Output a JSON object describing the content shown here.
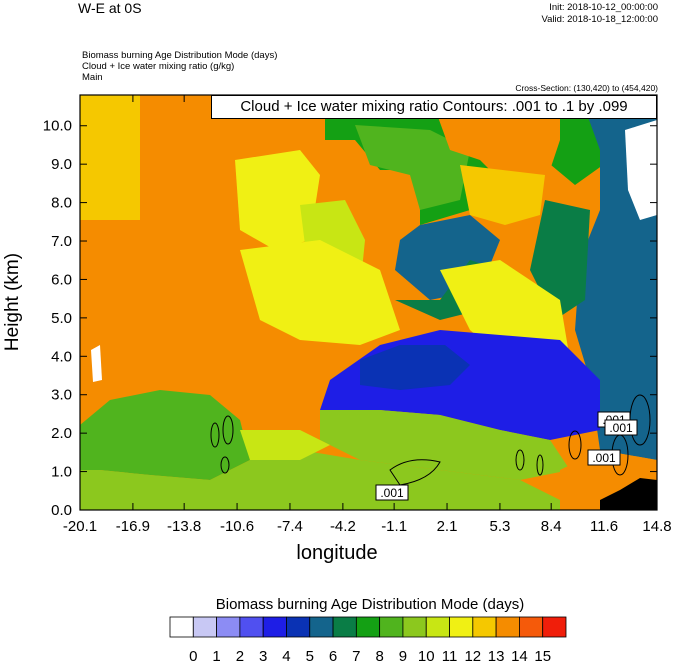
{
  "header": {
    "title": "W-E at 0S",
    "init": "Init: 2018-10-12_00:00:00",
    "valid": "Valid: 2018-10-18_12:00:00",
    "field_line_1": "Biomass burning Age Distribution Mode    (days)",
    "field_line_2": "Cloud + Ice water mixing ratio    (g/kg)",
    "field_line_3": "Main",
    "cross_section": "Cross-Section: (130,420) to (454,420)"
  },
  "chart_data": {
    "type": "heatmap",
    "title": "W-E at 0S",
    "xlabel": "longitude",
    "ylabel": "Height (km)",
    "xlim": [
      -20.1,
      14.8
    ],
    "ylim": [
      0.0,
      10.8
    ],
    "x_ticks": [
      "-20.1",
      "-16.9",
      "-13.8",
      "-10.6",
      "-7.4",
      "-4.2",
      "-1.1",
      "2.1",
      "5.3",
      "8.4",
      "11.6",
      "14.8"
    ],
    "y_ticks": [
      "0.0",
      "1.0",
      "2.0",
      "3.0",
      "4.0",
      "5.0",
      "6.0",
      "7.0",
      "8.0",
      "9.0",
      "10.0"
    ],
    "contour_title": "Cloud + Ice water mixing ratio Contours: .001 to .1 by .099",
    "contour_labels": [
      ".001",
      ".001",
      ".001",
      ".001"
    ],
    "colorbar": {
      "title": "Biomass burning Age Distribution Mode  (days)",
      "labels": [
        "0",
        "1",
        "2",
        "3",
        "4",
        "5",
        "6",
        "7",
        "8",
        "9",
        "10",
        "11",
        "12",
        "13",
        "14",
        "15"
      ],
      "colors": [
        "#ffffff",
        "#c8c8f4",
        "#8c8cf4",
        "#5050f0",
        "#1e1ee6",
        "#0a32b4",
        "#14648c",
        "#0a7d46",
        "#14a014",
        "#50b41e",
        "#8cc81e",
        "#c8e614",
        "#f0f014",
        "#f5c800",
        "#f58c00",
        "#f55a0a",
        "#f01e0a"
      ]
    },
    "grid": false,
    "legend_position": "bottom"
  }
}
